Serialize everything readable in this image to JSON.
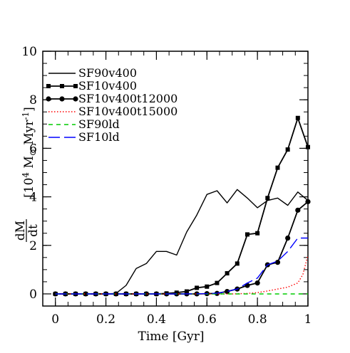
{
  "chart_data": {
    "type": "line",
    "title": "",
    "xlabel": "Time [Gyr]",
    "ylabel": {
      "numerator": "dM",
      "denominator": "dt",
      "units_prefix": "[10",
      "units_exp": "4",
      "units_mid": " M",
      "units_sun": "⊙",
      "units_mid2": " Myr",
      "units_exp2": "-1",
      "units_close": "]"
    },
    "xlim": [
      -0.05,
      1.0
    ],
    "ylim": [
      -0.5,
      10
    ],
    "xticks": [
      0,
      0.2,
      0.4,
      0.6,
      0.8,
      1
    ],
    "xtick_labels": [
      "0",
      "0.2",
      "0.4",
      "0.6",
      "0.8",
      "1"
    ],
    "yticks": [
      0,
      2,
      4,
      6,
      8,
      10
    ],
    "ytick_labels": [
      "0",
      "2",
      "4",
      "6",
      "8",
      "10"
    ],
    "grid": false,
    "legend_position": "top-left",
    "series": [
      {
        "name": "SF90v400",
        "color": "#000000",
        "style": "solid",
        "marker": "none",
        "x": [
          0,
          0.04,
          0.08,
          0.12,
          0.16,
          0.2,
          0.24,
          0.28,
          0.32,
          0.36,
          0.4,
          0.44,
          0.48,
          0.52,
          0.56,
          0.6,
          0.64,
          0.68,
          0.72,
          0.76,
          0.8,
          0.84,
          0.88,
          0.92,
          0.96,
          1.0
        ],
        "y": [
          0,
          0,
          0,
          0,
          0,
          0,
          0.02,
          0.35,
          1.05,
          1.25,
          1.75,
          1.75,
          1.6,
          2.55,
          3.25,
          4.1,
          4.25,
          3.75,
          4.3,
          3.95,
          3.55,
          3.85,
          3.95,
          3.65,
          4.2,
          3.85
        ]
      },
      {
        "name": "SF10v400",
        "color": "#000000",
        "style": "solid",
        "marker": "square",
        "x": [
          0,
          0.04,
          0.08,
          0.12,
          0.16,
          0.2,
          0.24,
          0.28,
          0.32,
          0.36,
          0.4,
          0.44,
          0.48,
          0.52,
          0.56,
          0.6,
          0.64,
          0.68,
          0.72,
          0.76,
          0.8,
          0.84,
          0.88,
          0.92,
          0.96,
          1.0
        ],
        "y": [
          0,
          0,
          0,
          0,
          0,
          0,
          0,
          0,
          0,
          0,
          0,
          0.02,
          0.05,
          0.1,
          0.25,
          0.3,
          0.45,
          0.85,
          1.25,
          2.45,
          2.5,
          3.95,
          5.2,
          5.95,
          7.25,
          6.05
        ]
      },
      {
        "name": "SF10v400t12000",
        "color": "#000000",
        "style": "solid",
        "marker": "circle",
        "x": [
          0,
          0.04,
          0.08,
          0.12,
          0.16,
          0.2,
          0.24,
          0.28,
          0.32,
          0.36,
          0.4,
          0.44,
          0.48,
          0.52,
          0.56,
          0.6,
          0.64,
          0.68,
          0.72,
          0.76,
          0.8,
          0.84,
          0.88,
          0.92,
          0.96,
          1.0
        ],
        "y": [
          0,
          0,
          0,
          0,
          0,
          0,
          0,
          0,
          0,
          0,
          0,
          0,
          0,
          0,
          0,
          0.01,
          0.02,
          0.1,
          0.2,
          0.35,
          0.45,
          1.2,
          1.3,
          2.3,
          3.45,
          3.8
        ]
      },
      {
        "name": "SF10v400t15000",
        "color": "#ff0000",
        "style": "dotted",
        "marker": "none",
        "x": [
          0,
          0.1,
          0.2,
          0.3,
          0.4,
          0.5,
          0.6,
          0.7,
          0.76,
          0.8,
          0.84,
          0.88,
          0.92,
          0.96,
          0.98,
          1.0
        ],
        "y": [
          0,
          0,
          0,
          0,
          0,
          0,
          0,
          0,
          0.02,
          0.05,
          0.12,
          0.2,
          0.28,
          0.45,
          0.8,
          1.6
        ]
      },
      {
        "name": "SF90ld",
        "color": "#00cc00",
        "style": "dashed",
        "marker": "none",
        "x": [
          0,
          0.2,
          0.4,
          0.6,
          0.8,
          1.0
        ],
        "y": [
          0,
          0,
          0,
          0,
          0,
          0
        ]
      },
      {
        "name": "SF10ld",
        "color": "#0000ff",
        "style": "longdash",
        "marker": "none",
        "x": [
          0,
          0.2,
          0.4,
          0.5,
          0.6,
          0.64,
          0.68,
          0.72,
          0.76,
          0.8,
          0.84,
          0.88,
          0.92,
          0.96,
          1.0
        ],
        "y": [
          0,
          0,
          0,
          0,
          0.01,
          0.03,
          0.1,
          0.2,
          0.45,
          0.65,
          1.2,
          1.35,
          1.75,
          2.3,
          2.3
        ]
      }
    ]
  }
}
